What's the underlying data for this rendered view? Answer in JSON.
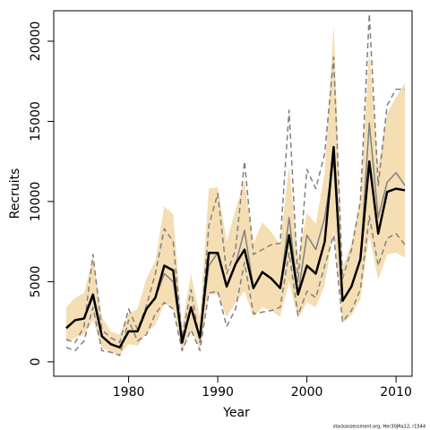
{
  "chart_data": {
    "type": "line",
    "xlabel": "Year",
    "ylabel": "Recruits",
    "footnote": "stockassessment.org, Her30JRa12, r1544",
    "x": [
      1973,
      1974,
      1975,
      1976,
      1977,
      1978,
      1979,
      1980,
      1981,
      1982,
      1983,
      1984,
      1985,
      1986,
      1987,
      1988,
      1989,
      1990,
      1991,
      1992,
      1993,
      1994,
      1995,
      1996,
      1997,
      1998,
      1999,
      2000,
      2001,
      2002,
      2003,
      2004,
      2005,
      2006,
      2007,
      2008,
      2009,
      2010,
      2011
    ],
    "band": {
      "color": "#f5deb3",
      "lower": [
        1200,
        1500,
        1700,
        2600,
        900,
        600,
        400,
        1100,
        1000,
        1800,
        2300,
        3600,
        3400,
        600,
        2000,
        800,
        4200,
        4200,
        2800,
        3700,
        4400,
        2800,
        3400,
        3200,
        2800,
        5000,
        2700,
        3700,
        3400,
        4800,
        8200,
        2400,
        2900,
        3900,
        7900,
        5100,
        6700,
        6800,
        6500
      ],
      "upper": [
        3400,
        4000,
        4300,
        6500,
        2800,
        1900,
        1700,
        3000,
        3300,
        5200,
        6300,
        9700,
        9200,
        2200,
        5500,
        2800,
        10800,
        10900,
        7500,
        9500,
        11300,
        7400,
        8700,
        8100,
        7300,
        12200,
        6500,
        9300,
        8600,
        11800,
        21000,
        5900,
        7400,
        10200,
        19500,
        12200,
        15500,
        16500,
        17400
      ]
    },
    "series": [
      {
        "color": "#808080",
        "dashed": true,
        "width": 1.5,
        "values": [
          1400,
          1200,
          2200,
          6700,
          2000,
          1500,
          1200,
          3300,
          2000,
          3500,
          5500,
          8300,
          7500,
          1500,
          4500,
          1200,
          8500,
          10500,
          5500,
          7000,
          12500,
          6700,
          7000,
          7300,
          7400,
          15700,
          5000,
          12000,
          10800,
          13000,
          19000,
          5200,
          7000,
          10000,
          21700,
          11000,
          16000,
          17000,
          17000
        ]
      },
      {
        "color": "#808080",
        "dashed": true,
        "width": 1.5,
        "values": [
          900,
          700,
          1300,
          3400,
          700,
          600,
          400,
          2600,
          1300,
          1700,
          3000,
          3700,
          3300,
          700,
          2000,
          700,
          4300,
          4400,
          2200,
          3300,
          6200,
          3000,
          3100,
          3200,
          3400,
          6800,
          2900,
          4400,
          4000,
          6000,
          7900,
          2500,
          3200,
          4500,
          9100,
          6000,
          7700,
          8000,
          7300
        ]
      },
      {
        "color": "#808080",
        "dashed": false,
        "width": 1.5,
        "values": [
          2100,
          2600,
          2700,
          4000,
          1600,
          1100,
          900,
          1900,
          1900,
          3300,
          4000,
          5500,
          5000,
          1200,
          3400,
          1500,
          6000,
          6800,
          4700,
          6100,
          8200,
          4600,
          5600,
          5200,
          4600,
          9000,
          4200,
          7900,
          7000,
          9000,
          12600,
          3800,
          4700,
          6400,
          14900,
          9000,
          11200,
          11800,
          11000
        ]
      },
      {
        "color": "#000000",
        "dashed": false,
        "width": 2.5,
        "values": [
          2100,
          2600,
          2700,
          4200,
          1600,
          1100,
          900,
          1900,
          1900,
          3300,
          4000,
          6000,
          5700,
          1200,
          3400,
          1500,
          6800,
          6800,
          4700,
          6100,
          7000,
          4600,
          5600,
          5200,
          4600,
          7900,
          4200,
          6000,
          5500,
          7500,
          13400,
          3800,
          4700,
          6400,
          12500,
          8000,
          10600,
          10800,
          10700
        ]
      }
    ],
    "xlim": [
      1971.6,
      2011.8
    ],
    "xticks": [
      1980,
      1990,
      2000,
      2010
    ],
    "ylim": [
      -900,
      21900
    ],
    "yticks": [
      0,
      5000,
      10000,
      15000,
      20000
    ]
  }
}
